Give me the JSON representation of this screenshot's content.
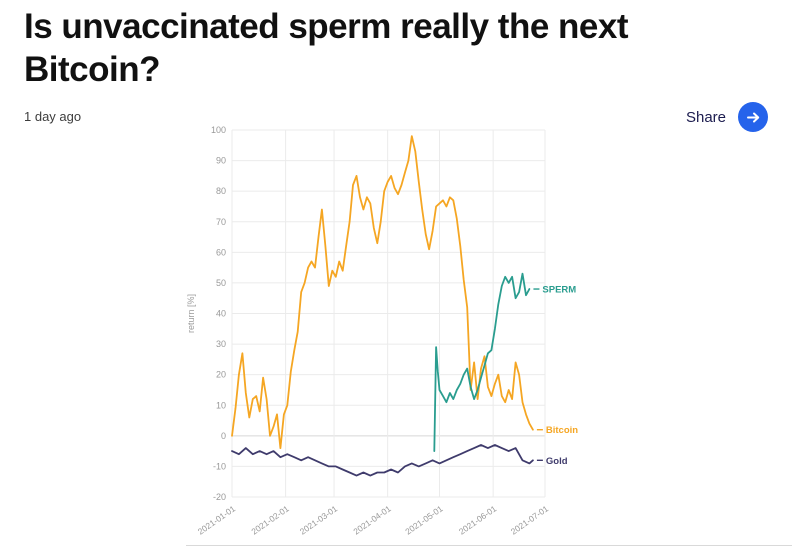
{
  "page": {
    "title": "Is unvaccinated sperm really the next Bitcoin?",
    "timestamp": "1 day ago",
    "share_label": "Share"
  },
  "colors": {
    "headline": "#111111",
    "share_button_blue": "#2563eb",
    "share_text": "#1b1b4e",
    "tick_label_gray": "#999999",
    "gridline_gray": "#ebebeb"
  },
  "icons": {
    "share_arrow": "right-arrow"
  },
  "chart_data": {
    "type": "line",
    "title": "",
    "xlabel": "",
    "ylabel": "return [%]",
    "ylim": [
      -20,
      100
    ],
    "yticks": [
      100,
      90,
      80,
      70,
      60,
      50,
      40,
      30,
      20,
      10,
      0,
      -10,
      -20
    ],
    "xticks": [
      "2021-01-01",
      "2021-02-01",
      "2021-03-01",
      "2021-04-01",
      "2021-05-01",
      "2021-06-01",
      "2021-07-01"
    ],
    "x_range": [
      "2021-01-01",
      "2021-07-01"
    ],
    "x_unit": "days since 2021-01-01",
    "grid": true,
    "legend_position": "right-of-line-ends",
    "series": [
      {
        "name": "Bitcoin",
        "color": "#f5a623",
        "x": [
          0,
          2,
          4,
          6,
          8,
          10,
          12,
          14,
          16,
          18,
          20,
          22,
          24,
          26,
          28,
          30,
          32,
          34,
          36,
          38,
          40,
          42,
          44,
          46,
          48,
          50,
          52,
          54,
          56,
          58,
          60,
          62,
          64,
          66,
          68,
          70,
          72,
          74,
          76,
          78,
          80,
          82,
          84,
          86,
          88,
          90,
          92,
          94,
          96,
          98,
          100,
          102,
          104,
          106,
          108,
          110,
          112,
          114,
          116,
          118,
          120,
          122,
          124,
          126,
          128,
          130,
          132,
          134,
          136,
          138,
          140,
          142,
          144,
          146,
          148,
          150,
          152,
          154,
          156,
          158,
          160,
          162,
          164,
          166,
          168,
          170,
          172,
          174
        ],
        "values": [
          0,
          9,
          20,
          27,
          14,
          6,
          12,
          13,
          8,
          19,
          12,
          0,
          3,
          7,
          -4,
          7,
          10,
          21,
          28,
          34,
          47,
          50,
          55,
          57,
          55,
          65,
          74,
          62,
          49,
          54,
          52,
          57,
          54,
          62,
          70,
          82,
          85,
          78,
          74,
          78,
          76,
          68,
          63,
          70,
          80,
          83,
          85,
          81,
          79,
          82,
          86,
          90,
          98,
          93,
          83,
          74,
          66,
          61,
          67,
          75,
          76,
          77,
          75,
          78,
          77,
          71,
          62,
          51,
          42,
          15,
          24,
          12,
          22,
          26,
          16,
          13,
          17,
          20,
          13,
          11,
          15,
          12,
          24,
          20,
          11,
          7,
          4,
          2
        ]
      },
      {
        "name": "SPERM",
        "color": "#2a9d8f",
        "x": [
          117,
          118,
          119,
          120,
          122,
          124,
          126,
          128,
          130,
          132,
          134,
          136,
          138,
          140,
          142,
          144,
          146,
          148,
          150,
          152,
          154,
          156,
          158,
          160,
          162,
          164,
          166,
          168,
          170,
          172
        ],
        "values": [
          -5,
          29,
          21,
          15,
          13,
          11,
          14,
          12,
          15,
          17,
          20,
          22,
          16,
          12,
          15,
          19,
          23,
          27,
          28,
          35,
          43,
          49,
          52,
          50,
          52,
          45,
          47,
          53,
          46,
          48
        ]
      },
      {
        "name": "Gold",
        "color": "#3f3b6c",
        "x": [
          0,
          4,
          8,
          12,
          16,
          20,
          24,
          28,
          32,
          36,
          40,
          44,
          48,
          52,
          56,
          60,
          64,
          68,
          72,
          76,
          80,
          84,
          88,
          92,
          96,
          100,
          104,
          108,
          112,
          116,
          120,
          124,
          128,
          132,
          136,
          140,
          144,
          148,
          152,
          156,
          160,
          164,
          168,
          172,
          174
        ],
        "values": [
          -5,
          -6,
          -4,
          -6,
          -5,
          -6,
          -5,
          -7,
          -6,
          -7,
          -8,
          -7,
          -8,
          -9,
          -10,
          -10,
          -11,
          -12,
          -13,
          -12,
          -13,
          -12,
          -12,
          -11,
          -12,
          -10,
          -9,
          -10,
          -9,
          -8,
          -9,
          -8,
          -7,
          -6,
          -5,
          -4,
          -3,
          -4,
          -3,
          -4,
          -5,
          -4,
          -8,
          -9,
          -8
        ]
      }
    ]
  }
}
